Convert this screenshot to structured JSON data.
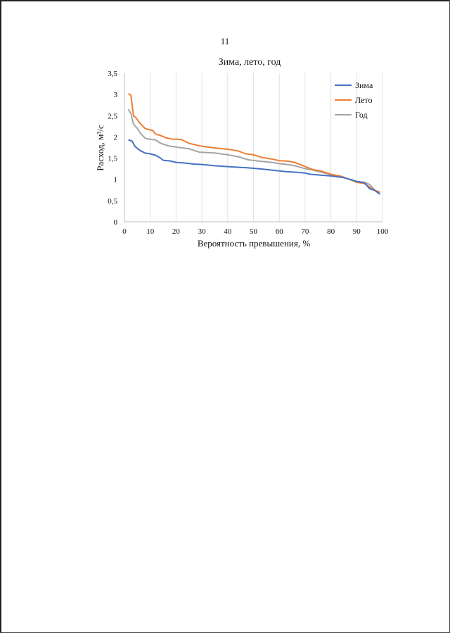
{
  "page": {
    "number": "11"
  },
  "chart_data": {
    "type": "line",
    "title": "Зима, лето, год",
    "xlabel": "Вероятность превышения, %",
    "ylabel": "Расход, м³/с",
    "xlim": [
      0,
      100
    ],
    "ylim": [
      0,
      3.5
    ],
    "x_ticks": [
      "0",
      "10",
      "20",
      "30",
      "40",
      "50",
      "60",
      "70",
      "80",
      "90",
      "100"
    ],
    "y_ticks": [
      "0",
      "0,5",
      "1",
      "1,5",
      "2",
      "2,5",
      "3",
      "3,5"
    ],
    "grid": "vertical",
    "legend_position": "top-right",
    "series": [
      {
        "name": "Зима",
        "color": "#4472C4",
        "x": [
          1.5,
          3,
          4,
          6,
          8,
          10,
          12,
          14,
          15,
          18,
          20,
          24,
          27,
          30,
          35,
          40,
          45,
          48,
          52,
          55,
          60,
          63,
          66,
          70,
          72,
          76,
          80,
          85,
          88,
          90,
          93,
          95,
          97,
          99
        ],
        "y": [
          1.93,
          1.9,
          1.78,
          1.68,
          1.62,
          1.6,
          1.57,
          1.5,
          1.45,
          1.43,
          1.4,
          1.38,
          1.36,
          1.35,
          1.32,
          1.3,
          1.28,
          1.27,
          1.25,
          1.23,
          1.2,
          1.18,
          1.17,
          1.15,
          1.12,
          1.1,
          1.08,
          1.04,
          0.99,
          0.95,
          0.92,
          0.78,
          0.74,
          0.65
        ]
      },
      {
        "name": "Лето",
        "color": "#ED7D31",
        "x": [
          1.5,
          2.5,
          3.5,
          4.5,
          6,
          8,
          9,
          11,
          12,
          14,
          16,
          18,
          22,
          25,
          27,
          30,
          35,
          40,
          44,
          47,
          50,
          53,
          57,
          60,
          63,
          66,
          70,
          73,
          76,
          80,
          84,
          88,
          90,
          93,
          95,
          97,
          99
        ],
        "y": [
          3.02,
          2.98,
          2.5,
          2.45,
          2.32,
          2.2,
          2.18,
          2.15,
          2.07,
          2.03,
          1.98,
          1.95,
          1.94,
          1.85,
          1.82,
          1.78,
          1.74,
          1.71,
          1.67,
          1.6,
          1.58,
          1.52,
          1.48,
          1.44,
          1.43,
          1.4,
          1.3,
          1.23,
          1.2,
          1.12,
          1.07,
          0.98,
          0.93,
          0.9,
          0.82,
          0.74,
          0.7
        ]
      },
      {
        "name": "Год",
        "color": "#A5A5A5",
        "x": [
          1.5,
          2.5,
          3.5,
          5,
          6,
          8,
          9,
          12,
          14,
          17,
          20,
          25,
          29,
          35,
          40,
          45,
          48,
          52,
          57,
          60,
          63,
          66,
          70,
          73,
          77,
          80,
          84,
          88,
          90,
          93,
          95,
          97,
          99
        ],
        "y": [
          2.65,
          2.55,
          2.3,
          2.2,
          2.1,
          1.97,
          1.95,
          1.93,
          1.85,
          1.79,
          1.76,
          1.72,
          1.64,
          1.62,
          1.58,
          1.52,
          1.46,
          1.43,
          1.4,
          1.37,
          1.35,
          1.32,
          1.25,
          1.22,
          1.16,
          1.11,
          1.07,
          0.98,
          0.95,
          0.93,
          0.88,
          0.75,
          0.68
        ]
      }
    ]
  }
}
